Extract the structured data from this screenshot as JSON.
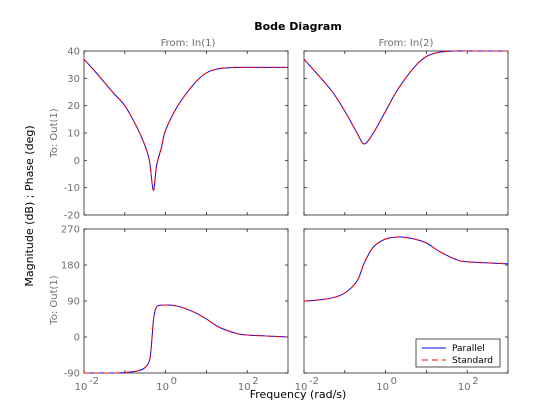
{
  "chart_data": {
    "type": "line",
    "title": "Bode Diagram",
    "xlabel": "Frequency  (rad/s)",
    "ylabel": "Magnitude (dB) ; Phase (deg)",
    "x_scale": "log",
    "xlim": [
      0.01,
      1000
    ],
    "x_ticks": [
      0.01,
      1,
      100
    ],
    "x_tick_labels": [
      {
        "base": "10",
        "exp": "-2"
      },
      {
        "base": "10",
        "exp": "0"
      },
      {
        "base": "10",
        "exp": "2"
      }
    ],
    "columns": [
      "From: In(1)",
      "From: In(2)"
    ],
    "rows": [
      "To: Out(1)",
      "To: Out(1)"
    ],
    "legend": {
      "placement": "bottom-right",
      "entries": [
        "Parallel",
        "Standard"
      ]
    },
    "series_styles": [
      {
        "name": "Parallel",
        "color": "#0000ff",
        "dash": "solid"
      },
      {
        "name": "Standard",
        "color": "#ff0000",
        "dash": "dashed"
      }
    ],
    "panels": [
      {
        "row": 0,
        "col": 0,
        "ylim": [
          -20,
          40
        ],
        "yticks": [
          -20,
          -10,
          0,
          10,
          20,
          30,
          40
        ],
        "x": [
          0.01,
          0.02,
          0.05,
          0.1,
          0.2,
          0.3,
          0.4,
          0.5,
          0.6,
          0.8,
          1,
          2,
          5,
          10,
          20,
          50,
          100,
          1000
        ],
        "series": [
          {
            "name": "Parallel",
            "values": [
              37,
              32,
              25,
              20,
              12,
              6,
              0,
              -11,
              -2,
              5,
              11,
              20,
              28,
              32,
              33.5,
              34,
              34,
              34
            ]
          },
          {
            "name": "Standard",
            "values": [
              37,
              32,
              25,
              20,
              12,
              6,
              0,
              -11,
              -2,
              5,
              11,
              20,
              28,
              32,
              33.5,
              34,
              34,
              34
            ]
          }
        ]
      },
      {
        "row": 0,
        "col": 1,
        "ylim": [
          -20,
          40
        ],
        "yticks": [
          -20,
          -10,
          0,
          10,
          20,
          30,
          40
        ],
        "x": [
          0.01,
          0.02,
          0.05,
          0.1,
          0.2,
          0.3,
          0.5,
          1,
          2,
          5,
          10,
          20,
          50,
          100,
          1000
        ],
        "series": [
          {
            "name": "Parallel",
            "values": [
              37,
              32,
              25,
              18,
              10,
              6,
              10,
              18,
              26,
              34,
              38,
              39.5,
              40,
              40,
              40
            ]
          },
          {
            "name": "Standard",
            "values": [
              37,
              32,
              25,
              18,
              10,
              6,
              10,
              18,
              26,
              34,
              38,
              39.5,
              40,
              40,
              40
            ]
          }
        ]
      },
      {
        "row": 1,
        "col": 0,
        "ylim": [
          -90,
          270
        ],
        "yticks": [
          -90,
          0,
          90,
          180,
          270
        ],
        "x": [
          0.01,
          0.05,
          0.1,
          0.2,
          0.3,
          0.4,
          0.45,
          0.5,
          0.55,
          0.6,
          0.7,
          1,
          2,
          5,
          10,
          20,
          50,
          100,
          1000
        ],
        "series": [
          {
            "name": "Parallel",
            "values": [
              -90,
              -90,
              -89,
              -85,
              -78,
              -60,
              -20,
              40,
              65,
              75,
              79,
              80,
              77,
              62,
              45,
              25,
              10,
              5,
              0
            ]
          },
          {
            "name": "Standard",
            "values": [
              -90,
              -90,
              -89,
              -85,
              -78,
              -60,
              -20,
              40,
              65,
              75,
              79,
              80,
              77,
              62,
              45,
              25,
              10,
              5,
              0
            ]
          }
        ]
      },
      {
        "row": 1,
        "col": 1,
        "ylim": [
          -90,
          270
        ],
        "yticks": [
          -90,
          0,
          90,
          180,
          270
        ],
        "x": [
          0.01,
          0.02,
          0.05,
          0.1,
          0.2,
          0.3,
          0.5,
          1,
          2,
          3,
          5,
          10,
          20,
          50,
          100,
          1000
        ],
        "series": [
          {
            "name": "Parallel",
            "values": [
              90,
              92,
              98,
              110,
              140,
              185,
              225,
              245,
              250,
              249,
              245,
              235,
              215,
              195,
              188,
              183
            ]
          },
          {
            "name": "Standard",
            "values": [
              90,
              92,
              98,
              110,
              140,
              185,
              225,
              245,
              250,
              249,
              245,
              235,
              215,
              195,
              188,
              183
            ]
          }
        ]
      }
    ]
  }
}
